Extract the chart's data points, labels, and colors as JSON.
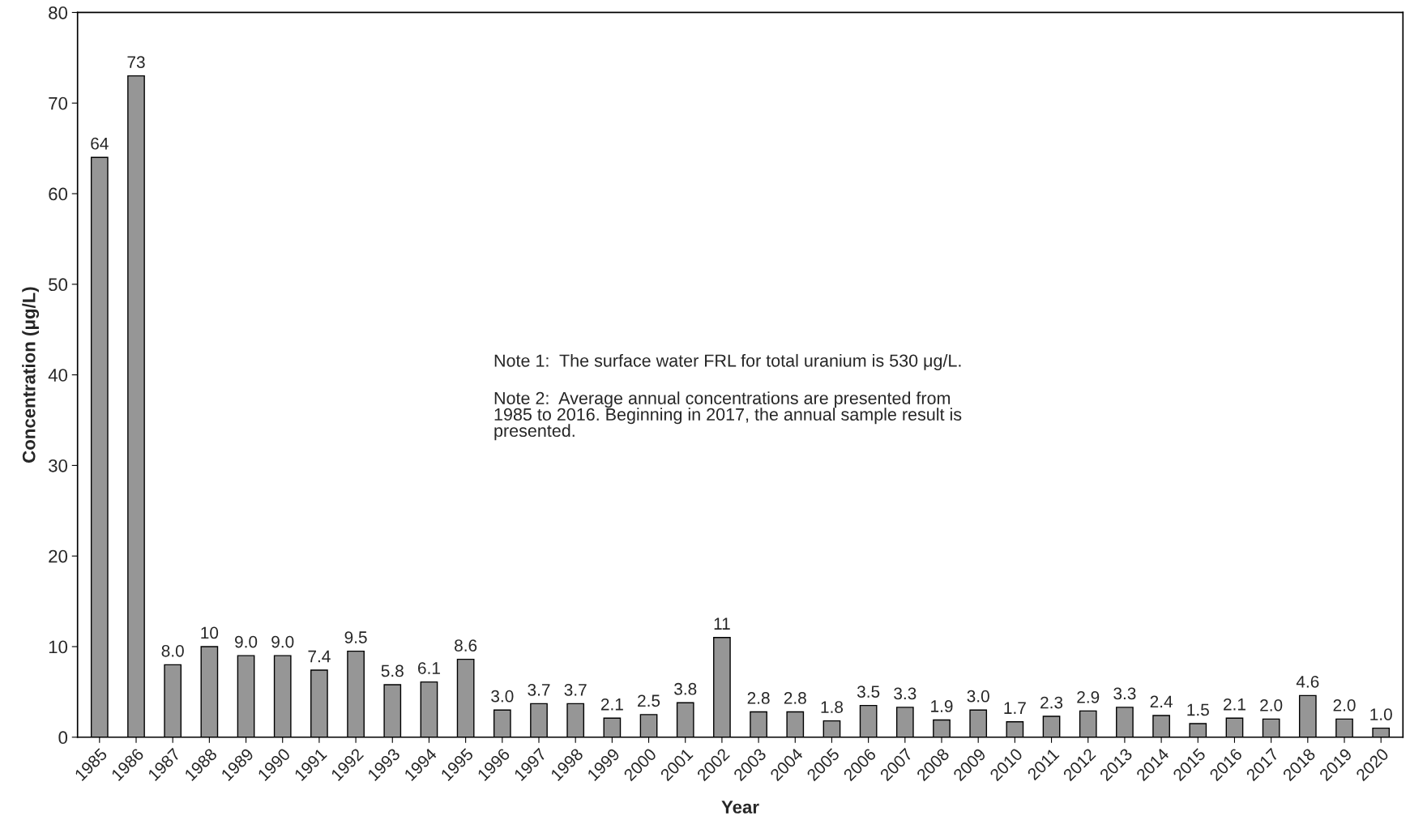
{
  "chart_data": {
    "type": "bar",
    "xlabel": "Year",
    "ylabel": "Concentration (μg/L)",
    "categories": [
      "1985",
      "1986",
      "1987",
      "1988",
      "1989",
      "1990",
      "1991",
      "1992",
      "1993",
      "1994",
      "1995",
      "1996",
      "1997",
      "1998",
      "1999",
      "2000",
      "2001",
      "2002",
      "2003",
      "2004",
      "2005",
      "2006",
      "2007",
      "2008",
      "2009",
      "2010",
      "2011",
      "2012",
      "2013",
      "2014",
      "2015",
      "2016",
      "2017",
      "2018",
      "2019",
      "2020"
    ],
    "values": [
      64,
      73,
      8.0,
      10,
      9.0,
      9.0,
      7.4,
      9.5,
      5.8,
      6.1,
      8.6,
      3.0,
      3.7,
      3.7,
      2.1,
      2.5,
      3.8,
      11,
      2.8,
      2.8,
      1.8,
      3.5,
      3.3,
      1.9,
      3.0,
      1.7,
      2.3,
      2.9,
      3.3,
      2.4,
      1.5,
      2.1,
      2.0,
      4.6,
      2.0,
      1.0
    ],
    "value_labels": [
      "64",
      "73",
      "8.0",
      "10",
      "9.0",
      "9.0",
      "7.4",
      "9.5",
      "5.8",
      "6.1",
      "8.6",
      "3.0",
      "3.7",
      "3.7",
      "2.1",
      "2.5",
      "3.8",
      "11",
      "2.8",
      "2.8",
      "1.8",
      "3.5",
      "3.3",
      "1.9",
      "3.0",
      "1.7",
      "2.3",
      "2.9",
      "3.3",
      "2.4",
      "1.5",
      "2.1",
      "2.0",
      "4.6",
      "2.0",
      "1.0"
    ],
    "color": "#969696",
    "ylim": [
      0,
      80
    ],
    "yticks": [
      0,
      10,
      20,
      30,
      40,
      50,
      60,
      70,
      80
    ],
    "grid": false,
    "legend": false,
    "annotations": [
      "Note 1:  The surface water FRL for total uranium is 530 μg/L.",
      "Note 2:  Average annual concentrations are presented from\n1985 to 2016. Beginning in 2017, the annual sample result is\npresented."
    ]
  }
}
